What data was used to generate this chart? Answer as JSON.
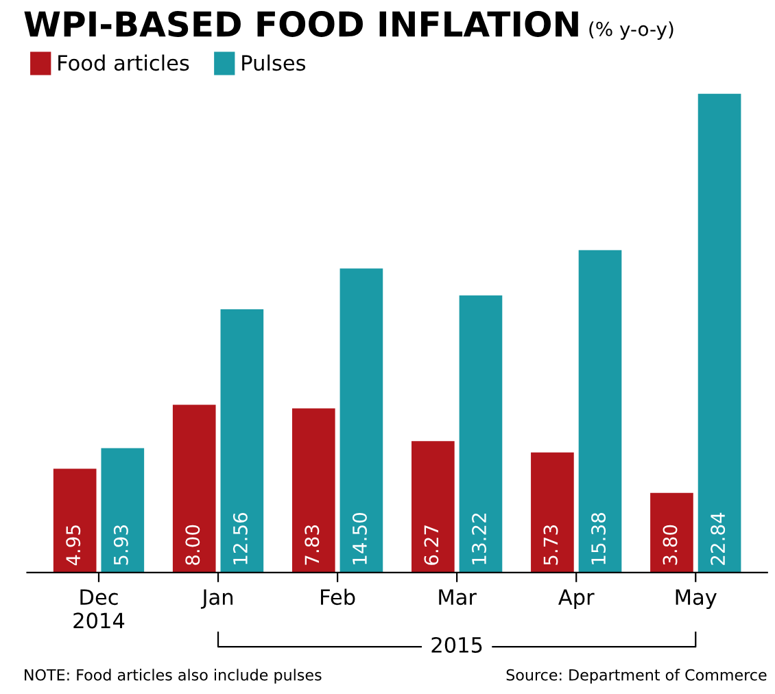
{
  "chart_data": {
    "type": "bar",
    "title": "WPI-BASED FOOD INFLATION",
    "subtitle": "(% y-o-y)",
    "categories": [
      "Dec\n2014",
      "Jan",
      "Feb",
      "Mar",
      "Apr",
      "May"
    ],
    "series": [
      {
        "name": "Food articles",
        "color": "#b3161c",
        "values": [
          4.95,
          8.0,
          7.83,
          6.27,
          5.73,
          3.8
        ],
        "value_labels": [
          "4.95",
          "8.00",
          "7.83",
          "6.27",
          "5.73",
          "3.80"
        ]
      },
      {
        "name": "Pulses",
        "color": "#1b9aa6",
        "values": [
          5.93,
          12.56,
          14.5,
          13.22,
          15.38,
          22.84
        ],
        "value_labels": [
          "5.93",
          "12.56",
          "14.50",
          "13.22",
          "15.38",
          "22.84"
        ]
      }
    ],
    "annotations": [
      "2015",
      "NOTE: Food articles also include pulses",
      "Source: Department of Commerce"
    ],
    "legend": "top left",
    "grid": false
  }
}
